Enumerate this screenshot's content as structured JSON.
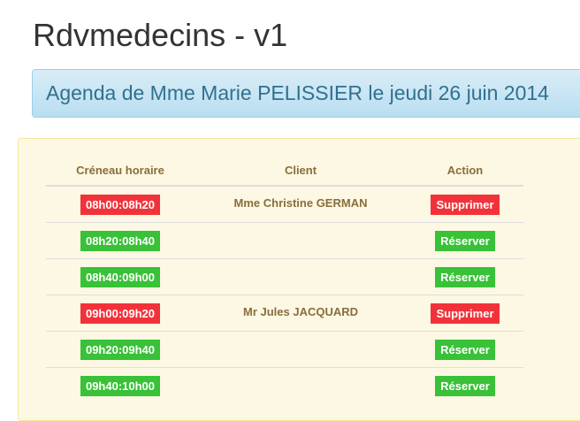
{
  "title": "Rdvmedecins - v1",
  "agenda_title": "Agenda de Mme Marie PELISSIER le jeudi 26 juin 2014",
  "colors": {
    "occupied": "#f2323a",
    "free": "#39c138"
  },
  "table": {
    "headers": [
      "Créneau horaire",
      "Client",
      "Action"
    ],
    "rows": [
      {
        "slot": "08h00:08h20",
        "client": "Mme Christine GERMAN",
        "action": "Supprimer",
        "status": "occupied"
      },
      {
        "slot": "08h20:08h40",
        "client": "",
        "action": "Réserver",
        "status": "free"
      },
      {
        "slot": "08h40:09h00",
        "client": "",
        "action": "Réserver",
        "status": "free"
      },
      {
        "slot": "09h00:09h20",
        "client": "Mr Jules JACQUARD",
        "action": "Supprimer",
        "status": "occupied"
      },
      {
        "slot": "09h20:09h40",
        "client": "",
        "action": "Réserver",
        "status": "free"
      },
      {
        "slot": "09h40:10h00",
        "client": "",
        "action": "Réserver",
        "status": "free"
      }
    ]
  }
}
